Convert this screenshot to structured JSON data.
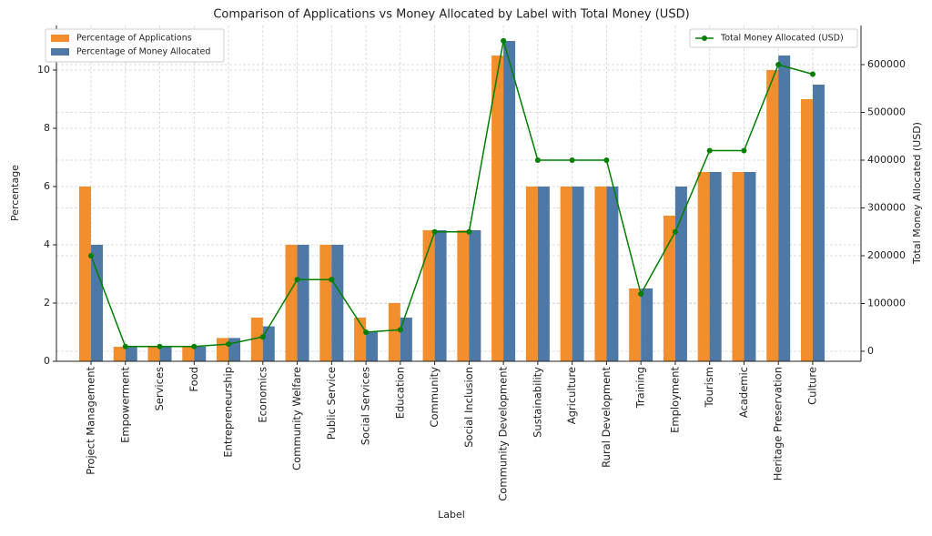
{
  "chart_data": {
    "type": "bar-line",
    "title": "Comparison of Applications vs Money Allocated by Label with Total Money (USD)",
    "x_label": "Label",
    "y_label": "Percentage",
    "y2_label": "Total Money Allocated (USD)",
    "categories": [
      "Project Management",
      "Empowerment",
      "Services",
      "Food",
      "Entrepreneurship",
      "Economics",
      "Community Welfare",
      "Public Service",
      "Social Services",
      "Education",
      "Community",
      "Social Inclusion",
      "Community Development",
      "Sustainability",
      "Agriculture",
      "Rural Development",
      "Training",
      "Employment",
      "Tourism",
      "Academic",
      "Heritage Preservation",
      "Culture"
    ],
    "series": [
      {
        "name": "Percentage of Applications",
        "color": "#f28e2b",
        "type": "bar",
        "values": [
          6,
          0.5,
          0.5,
          0.5,
          0.8,
          1.5,
          4,
          4,
          1.5,
          2,
          4.5,
          4.5,
          10.5,
          6,
          6,
          6,
          2.5,
          5,
          6.5,
          6.5,
          10,
          9
        ]
      },
      {
        "name": "Percentage of Money Allocated",
        "color": "#4e79a7",
        "type": "bar",
        "values": [
          4,
          0.5,
          0.5,
          0.5,
          0.8,
          1.2,
          4,
          4,
          1,
          1.5,
          4.5,
          4.5,
          11,
          6,
          6,
          6,
          2.5,
          6,
          6.5,
          6.5,
          10.5,
          9.5
        ]
      },
      {
        "name": "Total Money Allocated (USD)",
        "color": "#007f00",
        "type": "line",
        "axis": "y2",
        "values": [
          200000,
          10000,
          10000,
          10000,
          15000,
          30000,
          150000,
          150000,
          40000,
          45000,
          250000,
          250000,
          650000,
          400000,
          400000,
          400000,
          120000,
          250000,
          420000,
          420000,
          600000,
          580000
        ]
      }
    ],
    "ylim": [
      0,
      11.53
    ],
    "yticks": [
      0,
      2,
      4,
      6,
      8,
      10
    ],
    "y2lim": [
      -20952,
      681905
    ],
    "y2ticks": [
      0,
      100000,
      200000,
      300000,
      400000,
      500000,
      600000
    ],
    "grid": true,
    "legend": "upper left",
    "legend2": "upper right"
  }
}
